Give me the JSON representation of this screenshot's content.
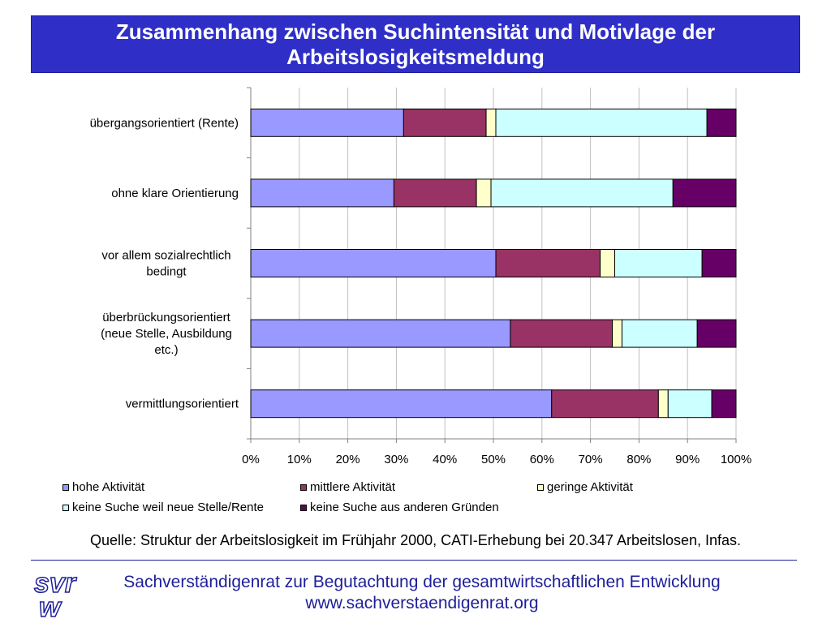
{
  "header": {
    "title": "Zusammenhang zwischen Suchintensität und Motivlage der Arbeitslosigkeitsmeldung"
  },
  "chart_data": {
    "type": "bar",
    "orientation": "horizontal-stacked-100",
    "categories": [
      "übergangsorientiert (Rente)",
      "ohne klare Orientierung",
      "vor allem sozialrechtlich bedingt",
      "überbrückungsorientiert (neue Stelle, Ausbildung etc.)",
      "vermittlungsorientiert"
    ],
    "series": [
      {
        "name": "hohe Aktivität",
        "color": "#9999ff",
        "values": [
          31.5,
          29.5,
          50.5,
          53.5,
          62
        ]
      },
      {
        "name": "mittlere Aktivität",
        "color": "#993366",
        "values": [
          17,
          17,
          21.5,
          21,
          22
        ]
      },
      {
        "name": "geringe Aktivität",
        "color": "#ffffcc",
        "values": [
          2,
          3,
          3,
          2,
          2
        ]
      },
      {
        "name": "keine Suche weil neue Stelle/Rente",
        "color": "#ccffff",
        "values": [
          43.5,
          37.5,
          18,
          15.5,
          9
        ]
      },
      {
        "name": "keine Suche aus anderen Gründen",
        "color": "#660066",
        "values": [
          6,
          13,
          7,
          8,
          5
        ]
      }
    ],
    "xticks": [
      "0%",
      "10%",
      "20%",
      "30%",
      "40%",
      "50%",
      "60%",
      "70%",
      "80%",
      "90%",
      "100%"
    ],
    "xlim": [
      0,
      100
    ],
    "grid": true,
    "legend_position": "bottom"
  },
  "source": "Quelle: Struktur der Arbeitslosigkeit im Frühjahr 2000, CATI-Erhebung bei 20.347 Arbeitslosen, Infas.",
  "footer": {
    "logo_text": "svr w",
    "org": "Sachverständigenrat zur Begutachtung der gesamtwirtschaftlichen Entwicklung",
    "url": "www.sachverstaendigenrat.org"
  }
}
